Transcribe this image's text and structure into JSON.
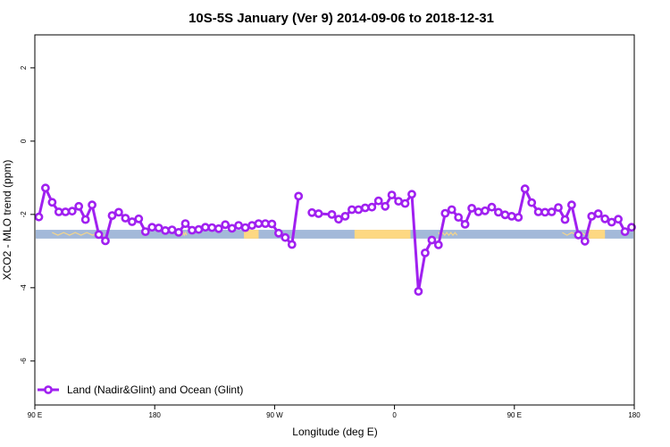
{
  "chart_data": {
    "type": "line",
    "title": "10S-5S January (Ver 9)   2014-09-06 to 2018-12-31",
    "xlabel": "Longitude (deg E)",
    "ylabel": "XCO2 - MLO trend (ppm)",
    "x_range_deg": [
      90,
      540
    ],
    "ylim": [
      -7.2,
      2.9
    ],
    "x_ticks": [
      {
        "x": 90,
        "label": "90 E"
      },
      {
        "x": 180,
        "label": "180"
      },
      {
        "x": 270,
        "label": "90 W"
      },
      {
        "x": 360,
        "label": "0"
      },
      {
        "x": 450,
        "label": "90 E"
      },
      {
        "x": 540,
        "label": "180"
      }
    ],
    "y_ticks": [
      {
        "y": 2,
        "label": "2"
      },
      {
        "y": 0,
        "label": "0"
      },
      {
        "y": -2,
        "label": "-2"
      },
      {
        "y": -4,
        "label": "-4"
      },
      {
        "y": -6,
        "label": "-6"
      }
    ],
    "grid": false,
    "legend_position": "bottom-left",
    "line_color": "#a020f0",
    "ocean_color": "#a3b9d9",
    "land_color": "#fdd882",
    "land_strip": {
      "y_center": -2.54,
      "height": 0.24
    },
    "land_segments": [
      [
        247,
        258
      ],
      [
        330,
        372
      ],
      [
        506,
        518
      ]
    ],
    "land_overlay_segments": [
      [
        103,
        142
      ],
      [
        196,
        204
      ],
      [
        393,
        407
      ],
      [
        486,
        518
      ]
    ],
    "series": [
      {
        "name": "Land (Nadir&Glint) and Ocean (Glint)",
        "x": [
          93,
          98,
          103,
          108,
          113,
          118,
          123,
          128,
          133,
          138,
          143,
          148,
          153,
          158,
          163,
          168,
          173,
          178,
          183,
          188,
          193,
          198,
          203,
          208,
          213,
          218,
          223,
          228,
          233,
          238,
          243,
          248,
          253,
          258,
          263,
          268,
          273,
          278,
          283,
          288,
          293,
          298,
          "gap",
          298,
          303,
          313,
          318,
          323,
          328,
          333,
          338,
          343,
          348,
          353,
          358,
          363,
          368,
          373,
          378,
          383,
          388,
          393,
          398,
          403,
          408,
          413,
          418,
          423,
          428,
          433,
          438,
          443,
          448,
          453,
          458,
          463,
          468,
          473,
          478,
          483,
          488,
          493,
          498,
          503,
          508,
          513,
          518,
          523,
          528,
          533,
          538
        ],
        "y": [
          -2.07,
          -1.28,
          -1.67,
          -1.93,
          -1.93,
          -1.91,
          -1.78,
          -2.14,
          -1.74,
          -2.55,
          -2.72,
          -2.03,
          -1.94,
          -2.1,
          -2.2,
          -2.12,
          -2.47,
          -2.35,
          -2.37,
          -2.44,
          -2.42,
          -2.49,
          -2.25,
          -2.43,
          -2.41,
          -2.35,
          -2.36,
          -2.39,
          -2.28,
          -2.38,
          -2.3,
          -2.36,
          -2.3,
          -2.25,
          -2.25,
          -2.26,
          -2.51,
          -2.63,
          -2.82,
          -1.5,
          null,
          null,
          null,
          -1.95,
          -1.98,
          -2.0,
          -2.13,
          -2.05,
          -1.87,
          -1.87,
          -1.82,
          -1.8,
          -1.63,
          -1.78,
          -1.47,
          -1.64,
          -1.7,
          -1.45,
          -4.1,
          -3.05,
          -2.7,
          -2.83,
          -1.97,
          -1.87,
          -2.08,
          -2.27,
          -1.83,
          -1.93,
          -1.9,
          -1.8,
          -1.94,
          -2.01,
          -2.05,
          -2.08,
          -1.3,
          -1.68,
          -1.93,
          -1.94,
          -1.93,
          -1.81,
          -2.14,
          -1.74,
          -2.56,
          -2.73,
          -2.05,
          -1.98,
          -2.12,
          -2.21,
          -2.13,
          -2.47,
          -2.35
        ]
      }
    ]
  }
}
